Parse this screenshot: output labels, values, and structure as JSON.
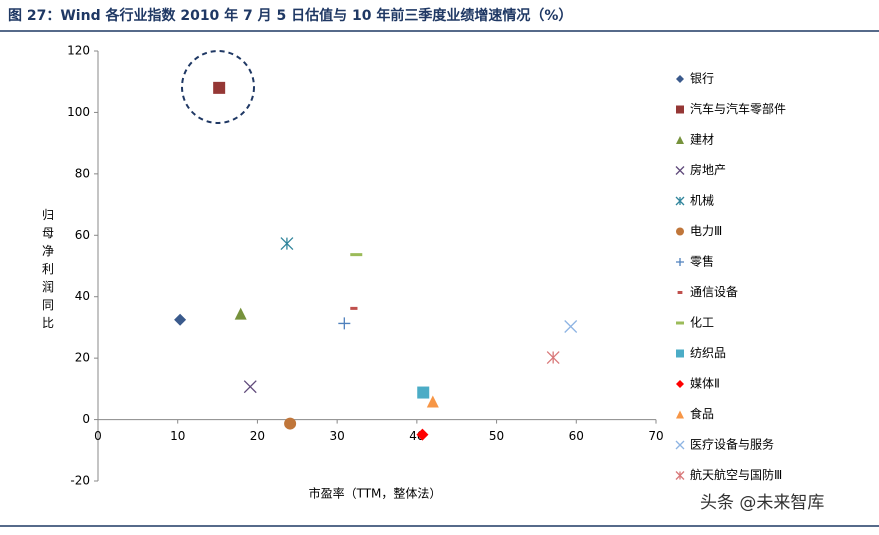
{
  "chart_data": {
    "type": "scatter",
    "title": "图 27：Wind 各行业指数 2010 年 7 月 5 日估值与 10 年前三季度业绩增速情况（%）",
    "x_label": "市盈率（TTM，整体法）",
    "y_label": "归母净利润同比",
    "watermark": "头条 @未来智库",
    "xlim": [
      0,
      70
    ],
    "xticks": [
      0,
      10,
      20,
      30,
      40,
      50,
      60,
      70
    ],
    "ylim": [
      -20,
      120
    ],
    "yticks": [
      -20,
      0,
      20,
      40,
      60,
      80,
      100,
      120
    ],
    "series": [
      {
        "name": "银行",
        "color": "#3a5a8c",
        "marker": "diamond",
        "x": [
          10.3
        ],
        "values": [
          32.5
        ]
      },
      {
        "name": "汽车与汽车零部件",
        "color": "#953735",
        "marker": "square",
        "x": [
          15.2
        ],
        "values": [
          108
        ]
      },
      {
        "name": "建材",
        "color": "#76923c",
        "marker": "triangle",
        "x": [
          17.9
        ],
        "values": [
          34.5
        ]
      },
      {
        "name": "房地产",
        "color": "#604a7b",
        "marker": "x",
        "x": [
          19.1
        ],
        "values": [
          10.7
        ]
      },
      {
        "name": "机械",
        "color": "#31859c",
        "marker": "star",
        "x": [
          23.7
        ],
        "values": [
          57.3
        ]
      },
      {
        "name": "电力Ⅲ",
        "color": "#c0763a",
        "marker": "circle",
        "x": [
          24.1
        ],
        "values": [
          -1.3
        ]
      },
      {
        "name": "零售",
        "color": "#4f81bd",
        "marker": "plus",
        "x": [
          30.9
        ],
        "values": [
          31.3
        ]
      },
      {
        "name": "通信设备",
        "color": "#c0504d",
        "marker": "dash",
        "x": [
          32.1
        ],
        "values": [
          36.2
        ]
      },
      {
        "name": "化工",
        "color": "#9bbb59",
        "marker": "longdash",
        "x": [
          32.4
        ],
        "values": [
          53.7
        ]
      },
      {
        "name": "纺织品",
        "color": "#4bacc6",
        "marker": "square",
        "x": [
          40.8
        ],
        "values": [
          8.8
        ]
      },
      {
        "name": "媒体Ⅱ",
        "color": "#ff0000",
        "marker": "diamond",
        "x": [
          40.7
        ],
        "values": [
          -4.9
        ]
      },
      {
        "name": "食品",
        "color": "#f79646",
        "marker": "triangle",
        "x": [
          42.0
        ],
        "values": [
          5.9
        ]
      },
      {
        "name": "医疗设备与服务",
        "color": "#8eb4e3",
        "marker": "x",
        "x": [
          59.3
        ],
        "values": [
          30.3
        ]
      },
      {
        "name": "航天航空与国防Ⅲ",
        "color": "#d9797a",
        "marker": "star",
        "x": [
          57.1
        ],
        "values": [
          20.2
        ]
      }
    ]
  }
}
